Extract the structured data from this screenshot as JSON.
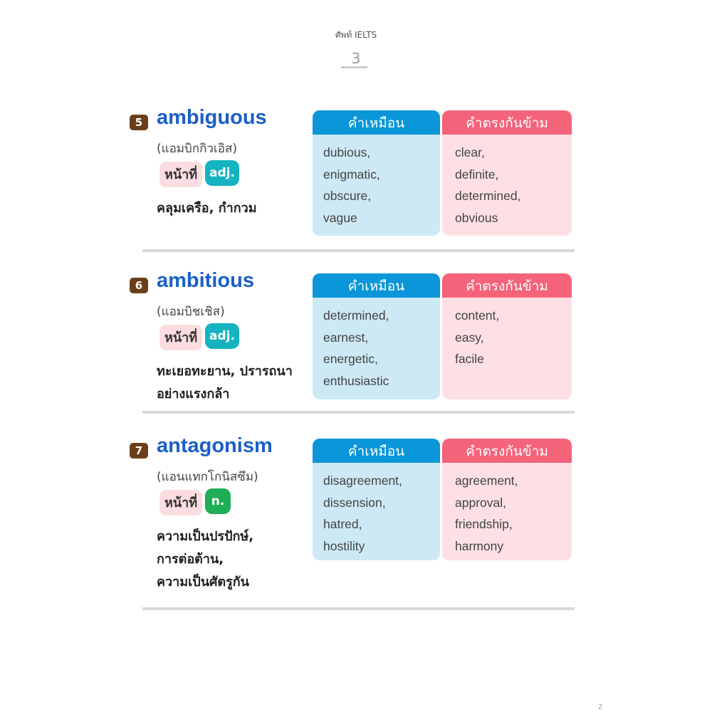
{
  "header": {
    "book_title": "ศัพท์ IELTS",
    "page_number": "3"
  },
  "labels": {
    "synonyms": "คำเหมือน",
    "antonyms": "คำตรงกันข้าม",
    "role": "หน้าที่"
  },
  "entries": [
    {
      "number": "5",
      "word": "ambiguous",
      "pronunciation": "(แอมบิกกิวเอิส)",
      "pos": "adj.",
      "pos_color": "#15b3bf",
      "definition": [
        "คลุมเครือ, กำกวม"
      ],
      "synonyms": [
        "dubious,",
        "enigmatic,",
        "obscure,",
        "vague"
      ],
      "antonyms": [
        "clear,",
        "definite,",
        "determined,",
        "obvious"
      ]
    },
    {
      "number": "6",
      "word": "ambitious",
      "pronunciation": "(แอมบิชเชิส)",
      "pos": "adj.",
      "pos_color": "#15b3bf",
      "definition": [
        "ทะเยอทะยาน, ปรารถนา",
        "อย่างแรงกล้า"
      ],
      "synonyms": [
        "determined,",
        "earnest,",
        "energetic,",
        "enthusiastic"
      ],
      "antonyms": [
        "content,",
        "easy,",
        "facile"
      ]
    },
    {
      "number": "7",
      "word": "antagonism",
      "pronunciation": "(แอนแทกโกนิสซึม)",
      "pos": "n.",
      "pos_color": "#1fae55",
      "definition": [
        "ความเป็นปรปักษ์,",
        "การต่อต้าน,",
        "ความเป็นศัตรูกัน"
      ],
      "synonyms": [
        "disagreement,",
        "dissension,",
        "hatred,",
        "hostility"
      ],
      "antonyms": [
        "agreement,",
        "approval,",
        "friendship,",
        "harmony"
      ]
    }
  ],
  "footer": {
    "corner_mark": "z"
  }
}
